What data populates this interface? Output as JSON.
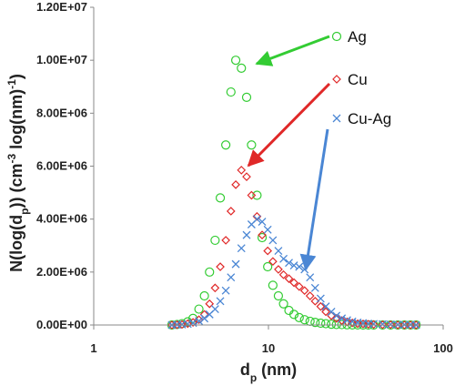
{
  "chart_data": {
    "type": "scatter",
    "x_label": [
      "d",
      "p",
      " (nm)"
    ],
    "y_label": [
      "N(log(d",
      "p",
      ")) (cm",
      "-3",
      " log(nm)",
      "-1",
      ")"
    ],
    "x_log": true,
    "xlim": [
      1,
      100
    ],
    "xticks": [
      1,
      10,
      100
    ],
    "ylim": [
      0,
      12000000
    ],
    "yticks": [
      {
        "value": 0,
        "label": "0.00E+00"
      },
      {
        "value": 2000000,
        "label": "2.00E+06"
      },
      {
        "value": 4000000,
        "label": "4.00E+06"
      },
      {
        "value": 6000000,
        "label": "6.00E+06"
      },
      {
        "value": 8000000,
        "label": "8.00E+06"
      },
      {
        "value": 10000000,
        "label": "1.00E+07"
      },
      {
        "value": 12000000,
        "label": "1.20E+07"
      }
    ],
    "x": [
      2.8,
      3.0,
      3.2,
      3.45,
      3.7,
      4.0,
      4.3,
      4.6,
      4.95,
      5.3,
      5.7,
      6.1,
      6.5,
      7.0,
      7.5,
      8.0,
      8.6,
      9.2,
      9.9,
      10.6,
      11.4,
      12.2,
      13.1,
      14.0,
      15.0,
      16.1,
      17.3,
      18.5,
      19.9,
      21.3,
      22.9,
      24.5,
      26.3,
      28.2,
      30.2,
      32.4,
      34.8,
      37.3,
      40,
      45,
      50,
      55,
      60,
      65,
      70
    ],
    "series": [
      {
        "name": "Ag",
        "color": "#33cc33",
        "marker": "circle",
        "values": [
          0,
          20000,
          50000,
          120000,
          250000,
          600000,
          1100000,
          2000000,
          3200000,
          4800000,
          6800000,
          8800000,
          10000000,
          9700000,
          8600000,
          6800000,
          4900000,
          3300000,
          2200000,
          1500000,
          1100000,
          800000,
          550000,
          400000,
          280000,
          200000,
          140000,
          100000,
          70000,
          50000,
          30000,
          20000,
          15000,
          10000,
          5000,
          5000,
          0,
          0,
          0,
          0,
          0,
          0,
          0,
          0,
          0
        ]
      },
      {
        "name": "Cu",
        "color": "#e02828",
        "marker": "diamond",
        "values": [
          0,
          10000,
          20000,
          50000,
          100000,
          200000,
          400000,
          800000,
          1400000,
          2200000,
          3200000,
          4300000,
          5300000,
          5850000,
          5600000,
          4900000,
          4100000,
          3400000,
          2800000,
          2400000,
          2100000,
          1900000,
          1750000,
          1600000,
          1450000,
          1300000,
          1100000,
          900000,
          700000,
          500000,
          350000,
          250000,
          170000,
          120000,
          80000,
          50000,
          40000,
          30000,
          20000,
          10000,
          10000,
          0,
          0,
          0,
          0
        ]
      },
      {
        "name": "Cu-Ag",
        "color": "#4a86d4",
        "marker": "cross",
        "values": [
          0,
          10000,
          20000,
          40000,
          80000,
          150000,
          250000,
          400000,
          600000,
          900000,
          1300000,
          1800000,
          2300000,
          2900000,
          3400000,
          3800000,
          4000000,
          3900000,
          3600000,
          3200000,
          2800000,
          2500000,
          2350000,
          2250000,
          2200000,
          2100000,
          1800000,
          1400000,
          1000000,
          700000,
          500000,
          350000,
          250000,
          180000,
          130000,
          90000,
          70000,
          50000,
          40000,
          30000,
          20000,
          10000,
          10000,
          10000,
          0
        ]
      }
    ]
  }
}
